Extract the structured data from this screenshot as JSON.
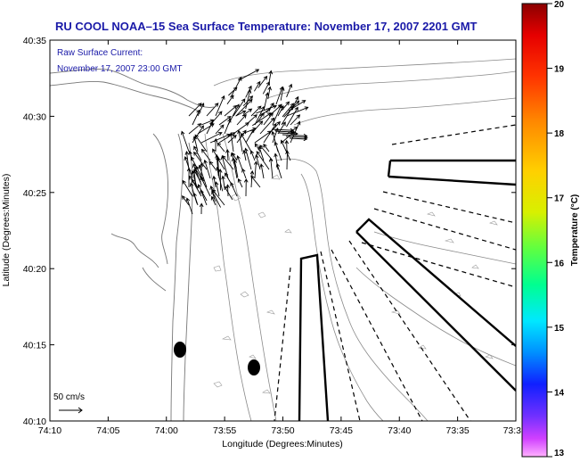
{
  "title": "RU COOL  NOAA–15  Sea Surface Temperature:  November 17, 2007 2201 GMT",
  "annotation": {
    "line1": "Raw Surface Current:",
    "line2": "November 17, 2007 23:00 GMT"
  },
  "axes": {
    "xlabel": "Longitude (Degrees:Minutes)",
    "ylabel": "Latitude (Degrees:Minutes)",
    "x_ticks": [
      "74:10",
      "74:05",
      "74:00",
      "73:55",
      "73:50",
      "73:45",
      "73:40",
      "73:35",
      "73:3"
    ],
    "y_ticks": [
      "40:35",
      "40:30",
      "40:25",
      "40:20",
      "40:15",
      "40:10"
    ]
  },
  "scale_label": "50 cm/s",
  "colorbar": {
    "label": "Temperature (°C)",
    "ticks": [
      "20",
      "19",
      "18",
      "17",
      "16",
      "15",
      "14",
      "13"
    ],
    "min": 13,
    "max": 20
  }
}
